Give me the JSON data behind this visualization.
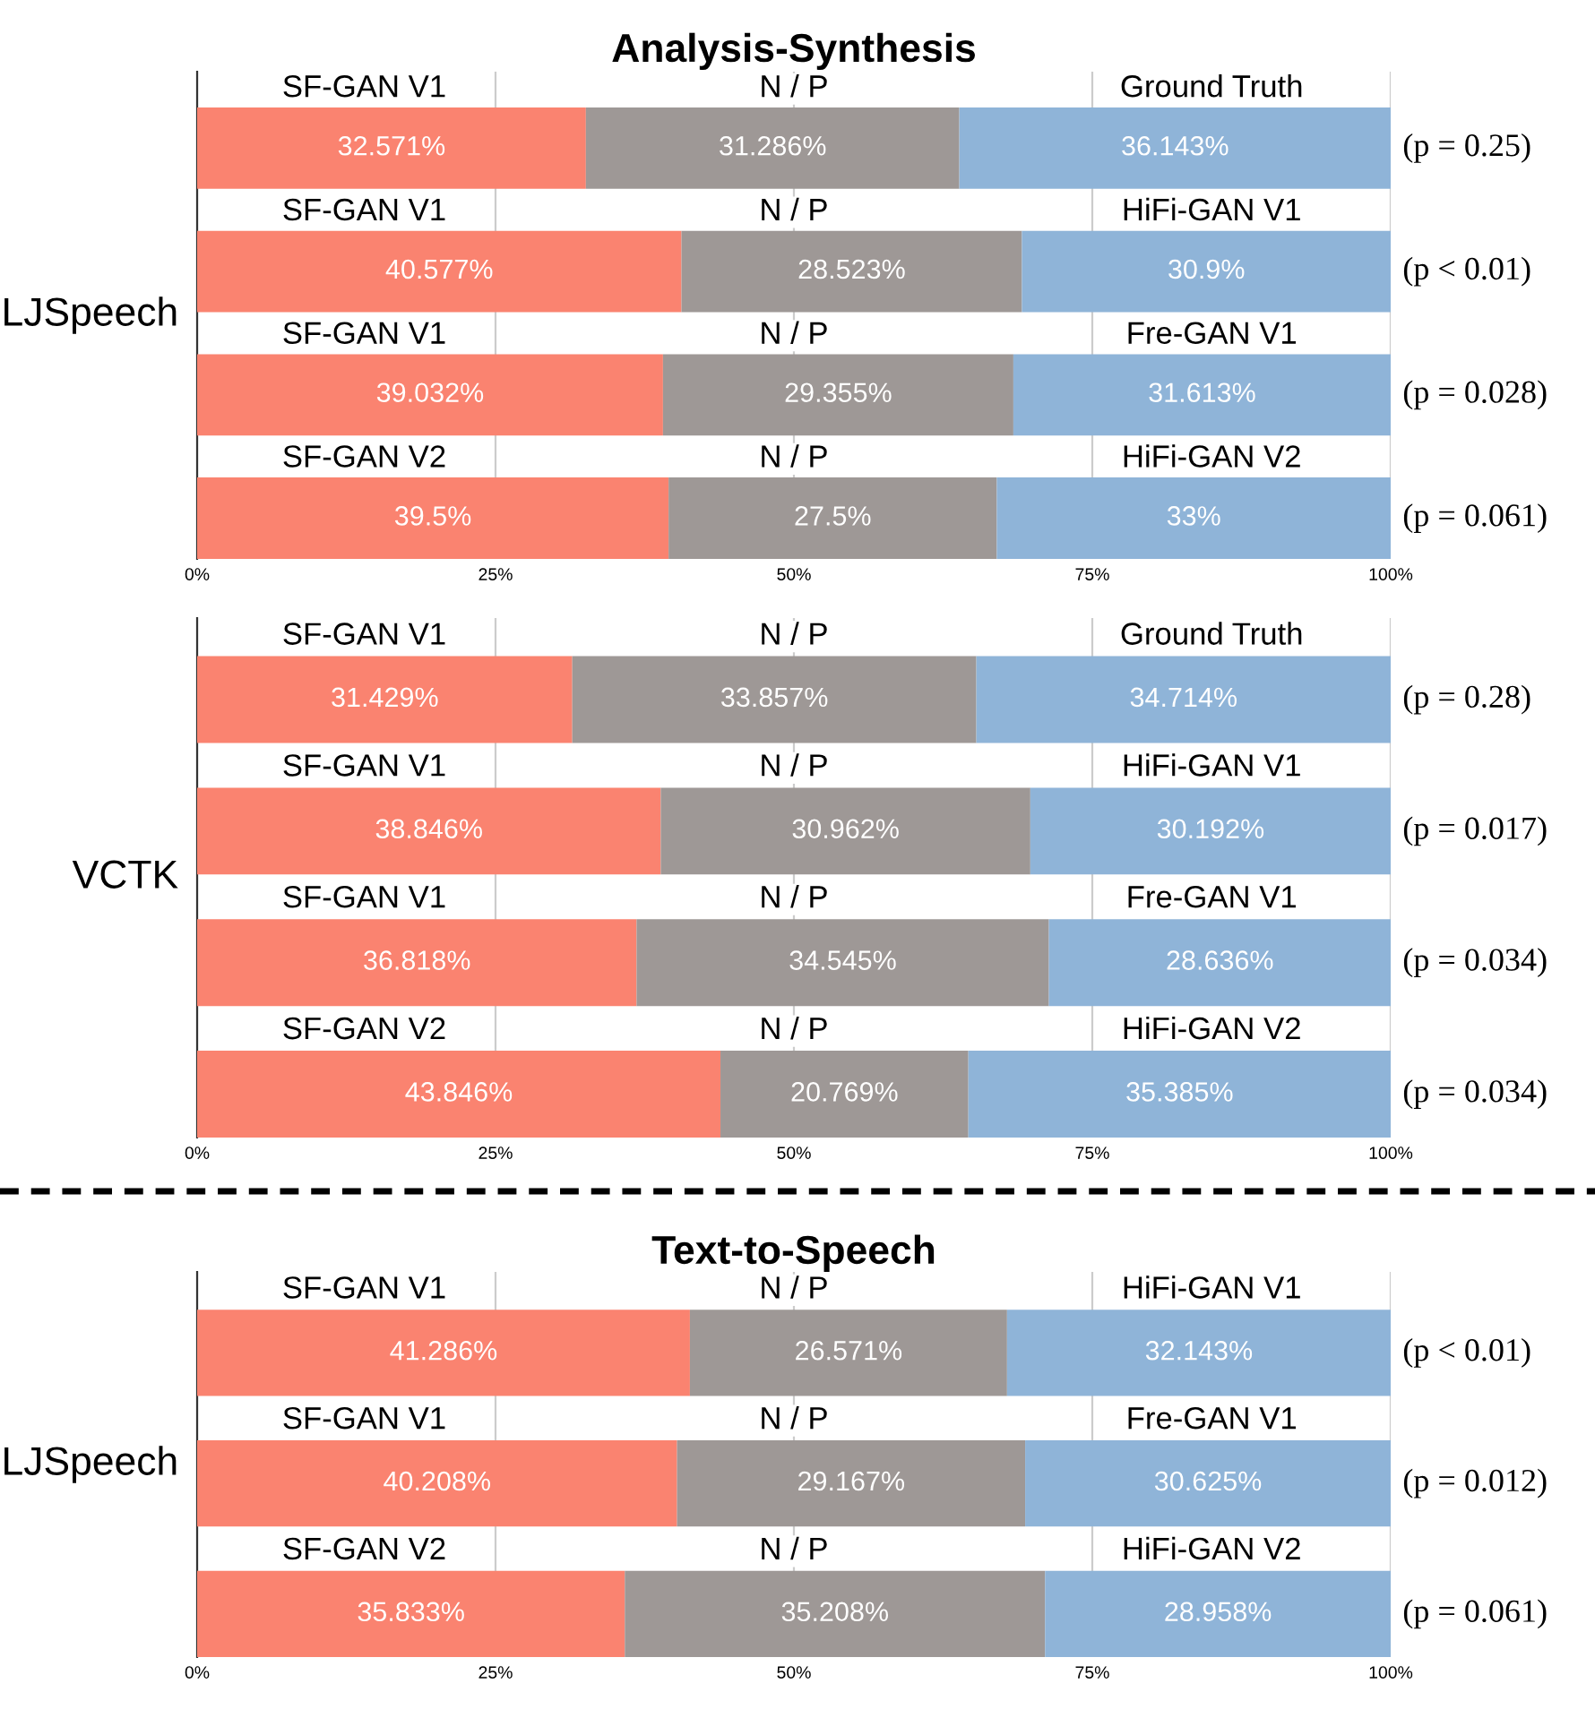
{
  "chart_data": [
    {
      "type": "bar",
      "orientation": "horizontal",
      "stacked": true,
      "title": "Analysis-Synthesis",
      "ylabel": "LJSpeech",
      "categories": [
        null,
        null,
        null,
        null
      ],
      "xlim": [
        0,
        100
      ],
      "xticks": [
        {
          "value": 0,
          "label": "0%"
        },
        {
          "value": 25,
          "label": "25%"
        },
        {
          "value": 50,
          "label": "50%"
        },
        {
          "value": 75,
          "label": "75%"
        },
        {
          "value": 100,
          "label": "100%"
        }
      ],
      "grid": "x",
      "legend": false,
      "series": [
        {
          "color": "#fa8370",
          "values": [
            32.571,
            40.577,
            39.032,
            39.5
          ],
          "value_labels": [
            "32.571%",
            "40.577%",
            "39.032%",
            "39.5%"
          ]
        },
        {
          "color": "#9e9896",
          "values": [
            31.286,
            28.523,
            29.355,
            27.5
          ],
          "value_labels": [
            "31.286%",
            "28.523%",
            "29.355%",
            "27.5%"
          ]
        },
        {
          "color": "#8fb4d8",
          "values": [
            36.143,
            30.9,
            31.613,
            33
          ],
          "value_labels": [
            "36.143%",
            "30.9%",
            "31.613%",
            "33%"
          ]
        }
      ],
      "annotations": [
        "SF-GAN V1",
        "N / P",
        "Ground Truth",
        "(p = 0.25)",
        "SF-GAN V1",
        "N / P",
        "HiFi-GAN V1",
        "(p < 0.01)",
        "SF-GAN V1",
        "N / P",
        "Fre-GAN V1",
        "(p = 0.028)",
        "SF-GAN V2",
        "N / P",
        "HiFi-GAN V2",
        "(p = 0.061)"
      ]
    },
    {
      "type": "bar",
      "orientation": "horizontal",
      "stacked": true,
      "ylabel": "VCTK",
      "categories": [
        null,
        null,
        null,
        null
      ],
      "xlim": [
        0,
        100
      ],
      "xticks": [
        {
          "value": 0,
          "label": "0%"
        },
        {
          "value": 25,
          "label": "25%"
        },
        {
          "value": 50,
          "label": "50%"
        },
        {
          "value": 75,
          "label": "75%"
        },
        {
          "value": 100,
          "label": "100%"
        }
      ],
      "grid": "x",
      "legend": false,
      "series": [
        {
          "color": "#fa8370",
          "values": [
            31.429,
            38.846,
            36.818,
            43.846
          ],
          "value_labels": [
            "31.429%",
            "38.846%",
            "36.818%",
            "43.846%"
          ]
        },
        {
          "color": "#9e9896",
          "values": [
            33.857,
            30.962,
            34.545,
            20.769
          ],
          "value_labels": [
            "33.857%",
            "30.962%",
            "34.545%",
            "20.769%"
          ]
        },
        {
          "color": "#8fb4d8",
          "values": [
            34.714,
            30.192,
            28.636,
            35.385
          ],
          "value_labels": [
            "34.714%",
            "30.192%",
            "28.636%",
            "35.385%"
          ]
        }
      ],
      "annotations": [
        "SF-GAN V1",
        "N / P",
        "Ground Truth",
        "(p = 0.28)",
        "SF-GAN V1",
        "N / P",
        "HiFi-GAN V1",
        "(p = 0.017)",
        "SF-GAN V1",
        "N / P",
        "Fre-GAN V1",
        "(p = 0.034)",
        "SF-GAN V2",
        "N / P",
        "HiFi-GAN V2",
        "(p = 0.034)"
      ]
    },
    {
      "type": "bar",
      "orientation": "horizontal",
      "stacked": true,
      "title": "Text-to-Speech",
      "ylabel": "LJSpeech",
      "categories": [
        null,
        null,
        null
      ],
      "xlim": [
        0,
        100
      ],
      "xticks": [
        {
          "value": 0,
          "label": "0%"
        },
        {
          "value": 25,
          "label": "25%"
        },
        {
          "value": 50,
          "label": "50%"
        },
        {
          "value": 75,
          "label": "75%"
        },
        {
          "value": 100,
          "label": "100%"
        }
      ],
      "grid": "x",
      "legend": false,
      "series": [
        {
          "color": "#fa8370",
          "values": [
            41.286,
            40.208,
            35.833
          ],
          "value_labels": [
            "41.286%",
            "40.208%",
            "35.833%"
          ]
        },
        {
          "color": "#9e9896",
          "values": [
            26.571,
            29.167,
            35.208
          ],
          "value_labels": [
            "26.571%",
            "29.167%",
            "35.208%"
          ]
        },
        {
          "color": "#8fb4d8",
          "values": [
            32.143,
            30.625,
            28.958
          ],
          "value_labels": [
            "32.143%",
            "30.625%",
            "28.958%"
          ]
        }
      ],
      "annotations": [
        "SF-GAN V1",
        "N / P",
        "HiFi-GAN V1",
        "(p < 0.01)",
        "SF-GAN V1",
        "N / P",
        "Fre-GAN V1",
        "(p = 0.012)",
        "SF-GAN V2",
        "N / P",
        "HiFi-GAN V2",
        "(p = 0.061)"
      ]
    }
  ]
}
